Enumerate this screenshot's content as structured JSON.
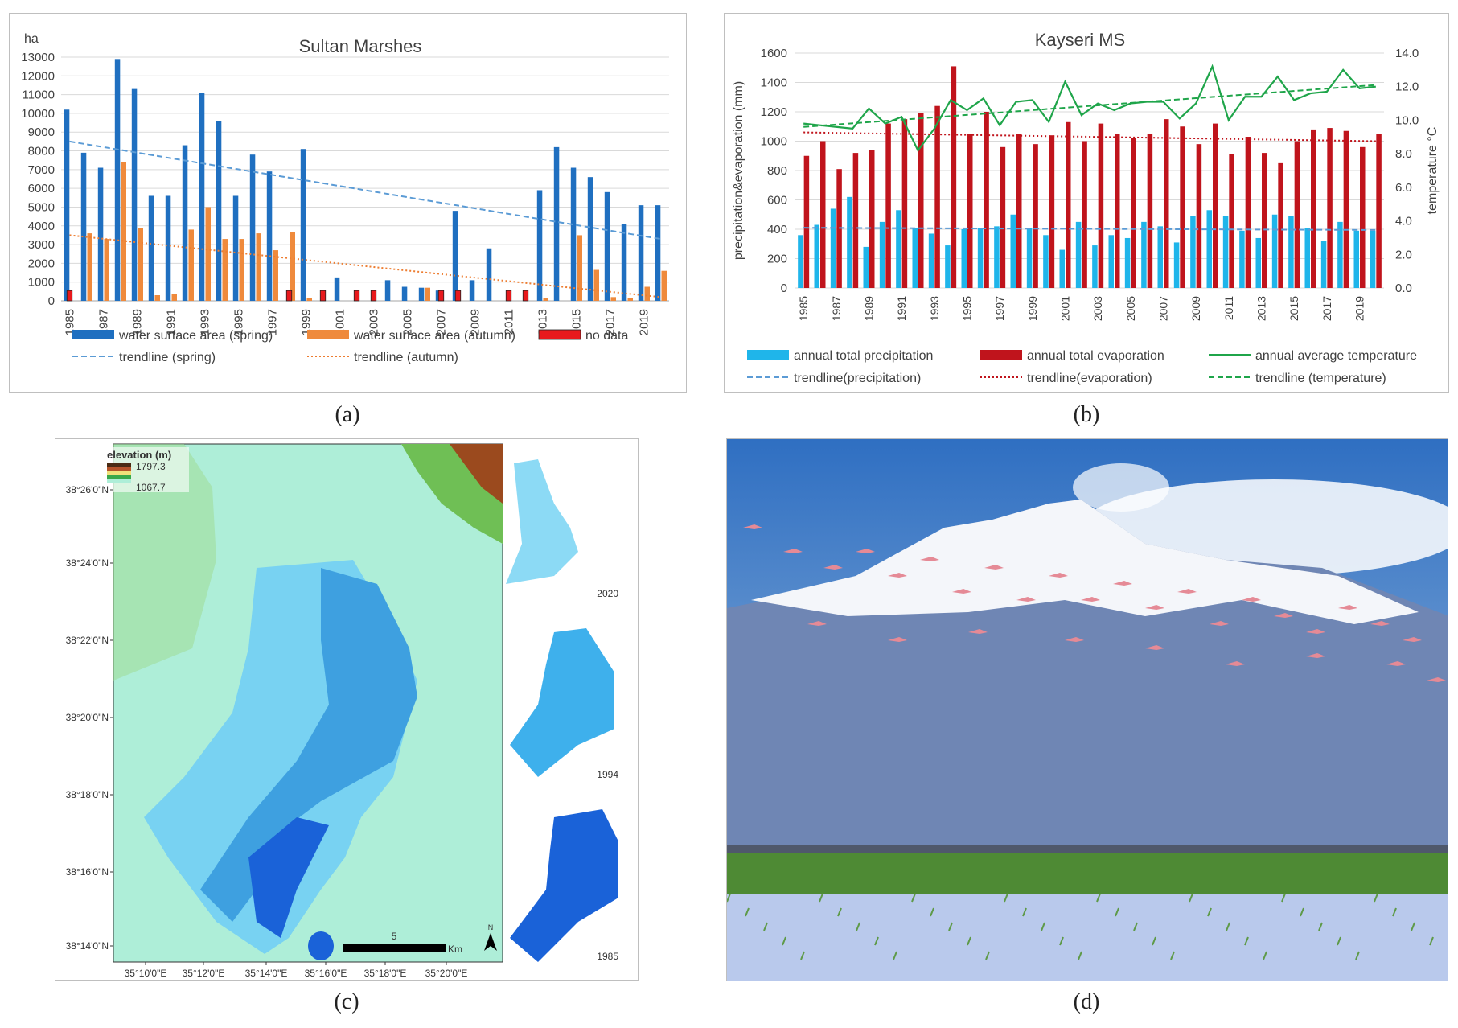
{
  "captions": {
    "a": "(a)",
    "b": "(b)",
    "c": "(c)",
    "d": "(d)"
  },
  "chart_data": [
    {
      "type": "bar",
      "title": "Sultan Marshes",
      "ylabel": "ha",
      "ylim": [
        0,
        13000
      ],
      "yticks": [
        0,
        1000,
        2000,
        3000,
        4000,
        5000,
        6000,
        7000,
        8000,
        9000,
        10000,
        11000,
        12000,
        13000
      ],
      "categories": [
        "1985",
        "1986",
        "1987",
        "1988",
        "1989",
        "1990",
        "1991",
        "1992",
        "1993",
        "1994",
        "1995",
        "1996",
        "1997",
        "1998",
        "1999",
        "2000",
        "2001",
        "2002",
        "2003",
        "2004",
        "2005",
        "2006",
        "2007",
        "2008",
        "2009",
        "2010",
        "2011",
        "2012",
        "2013",
        "2014",
        "2015",
        "2016",
        "2017",
        "2018",
        "2019",
        "2020"
      ],
      "tick_labels": [
        "1985",
        "1987",
        "1989",
        "1991",
        "1993",
        "1995",
        "1997",
        "1999",
        "2001",
        "2003",
        "2005",
        "2007",
        "2009",
        "2011",
        "2013",
        "2015",
        "2017",
        "2019"
      ],
      "series": [
        {
          "name": "water surface area (spring)",
          "color": "#1f6fc0",
          "values": [
            10200,
            7900,
            7100,
            12900,
            11300,
            5600,
            5600,
            8300,
            11100,
            9600,
            5600,
            7800,
            6900,
            0,
            8100,
            0,
            1250,
            0,
            0,
            1100,
            750,
            700,
            550,
            4800,
            1100,
            2800,
            0,
            0,
            5900,
            8200,
            7100,
            6600,
            5800,
            4100,
            5100,
            5100
          ]
        },
        {
          "name": "water surface area (autumn)",
          "color": "#ef8a3c",
          "values": [
            0,
            3600,
            3300,
            7400,
            3900,
            300,
            350,
            3800,
            5000,
            3300,
            3300,
            3600,
            2700,
            3650,
            150,
            0,
            0,
            0,
            0,
            0,
            0,
            700,
            0,
            0,
            0,
            0,
            0,
            0,
            150,
            0,
            3500,
            1650,
            200,
            150,
            750,
            1600
          ]
        },
        {
          "name": "no data",
          "color": "#e8191c",
          "values": [
            550,
            0,
            0,
            0,
            0,
            0,
            0,
            0,
            0,
            0,
            0,
            0,
            0,
            550,
            0,
            550,
            0,
            550,
            550,
            0,
            0,
            0,
            550,
            550,
            0,
            0,
            550,
            550,
            0,
            0,
            0,
            0,
            0,
            0,
            0,
            0
          ]
        }
      ],
      "trendlines": [
        {
          "name": "trendline (spring)",
          "color": "#5b9bd5",
          "style": "dashed",
          "start": 8500,
          "end": 3300
        },
        {
          "name": "trendline (autumn)",
          "color": "#ed7d31",
          "style": "dotted",
          "start": 3500,
          "end": 200
        }
      ]
    },
    {
      "type": "bar-line",
      "title": "Kayseri MS",
      "ylabel": "precipitation&evaporation (mm)",
      "y2label": "temperature °C",
      "ylim": [
        0,
        1600
      ],
      "y2lim": [
        0,
        14
      ],
      "yticks": [
        0,
        200,
        400,
        600,
        800,
        1000,
        1200,
        1400,
        1600
      ],
      "y2ticks": [
        "0.0",
        "2.0",
        "4.0",
        "6.0",
        "8.0",
        "10.0",
        "12.0",
        "14.0"
      ],
      "categories": [
        "1985",
        "1986",
        "1987",
        "1988",
        "1989",
        "1990",
        "1991",
        "1992",
        "1993",
        "1994",
        "1995",
        "1996",
        "1997",
        "1998",
        "1999",
        "2000",
        "2001",
        "2002",
        "2003",
        "2004",
        "2005",
        "2006",
        "2007",
        "2008",
        "2009",
        "2010",
        "2011",
        "2012",
        "2013",
        "2014",
        "2015",
        "2016",
        "2017",
        "2018",
        "2019",
        "2020"
      ],
      "tick_labels": [
        "1985",
        "1987",
        "1989",
        "1991",
        "1993",
        "1995",
        "1997",
        "1999",
        "2001",
        "2003",
        "2005",
        "2007",
        "2009",
        "2011",
        "2013",
        "2015",
        "2017",
        "2019"
      ],
      "series": [
        {
          "name": "annual total precipitation",
          "color": "#1fb5ea",
          "values": [
            360,
            430,
            540,
            620,
            280,
            450,
            530,
            410,
            370,
            290,
            400,
            410,
            420,
            500,
            410,
            360,
            260,
            450,
            290,
            360,
            340,
            450,
            420,
            310,
            490,
            530,
            490,
            390,
            340,
            500,
            490,
            410,
            320,
            450,
            390,
            390
          ]
        },
        {
          "name": "annual total evaporation",
          "color": "#c0141c",
          "values": [
            900,
            1000,
            810,
            920,
            940,
            1120,
            1150,
            1190,
            1240,
            1510,
            1050,
            1200,
            960,
            1050,
            980,
            1040,
            1130,
            1000,
            1120,
            1050,
            1020,
            1050,
            1150,
            1100,
            980,
            1120,
            910,
            1030,
            920,
            850,
            1000,
            1080,
            1090,
            1070,
            960,
            1050
          ]
        },
        {
          "name": "annual average temperature",
          "color": "#1fa54a",
          "values": [
            9.8,
            9.7,
            9.6,
            9.5,
            10.7,
            9.8,
            10.2,
            8.2,
            9.5,
            11.2,
            10.6,
            11.3,
            9.7,
            11.1,
            11.2,
            9.9,
            12.3,
            10.3,
            11.0,
            10.6,
            11.0,
            11.1,
            11.1,
            10.1,
            11.0,
            13.2,
            10.0,
            11.4,
            11.4,
            12.6,
            11.2,
            11.6,
            11.7,
            13.0,
            11.9,
            12.0
          ]
        }
      ],
      "trendlines": [
        {
          "name": "trendline(precipitation)",
          "color": "#5b9bd5",
          "style": "dashed",
          "axis": "y",
          "start": 410,
          "end": 395
        },
        {
          "name": "trendline(evaporation)",
          "color": "#c0141c",
          "style": "dotted",
          "axis": "y",
          "start": 1060,
          "end": 1000
        },
        {
          "name": "trendline (temperature)",
          "color": "#1fa54a",
          "style": "dashed",
          "axis": "y2",
          "start": 9.6,
          "end": 12.1
        }
      ]
    }
  ],
  "map": {
    "legend_title": "elevation (m)",
    "legend_max": "1797.3",
    "legend_min": "1067.7",
    "lat_labels": [
      "38°26'0\"N",
      "38°24'0\"N",
      "38°22'0\"N",
      "38°20'0\"N",
      "38°18'0\"N",
      "38°16'0\"N",
      "38°14'0\"N"
    ],
    "lon_labels": [
      "35°10'0\"E",
      "35°12'0\"E",
      "35°14'0\"E",
      "35°16'0\"E",
      "35°18'0\"E",
      "35°20'0\"E"
    ],
    "scale_value": "5",
    "scale_unit": "Km",
    "north": "N",
    "insets": [
      "2020",
      "1994",
      "1985"
    ],
    "colors": {
      "land": "#aeeed8",
      "hills": "#9ed98e",
      "water_light": "#78d2f2",
      "water_mid": "#3ea0e0",
      "water_dark": "#1a62d8"
    }
  },
  "photo": {
    "colors": {
      "sky_top": "#2f6fc2",
      "sky_bottom": "#8fb3da",
      "snow": "#f4f6fa",
      "mountain": "#6f86b4",
      "grass": "#4e8a34",
      "water": "#b9c9ec",
      "bird": "#e58a96"
    }
  }
}
